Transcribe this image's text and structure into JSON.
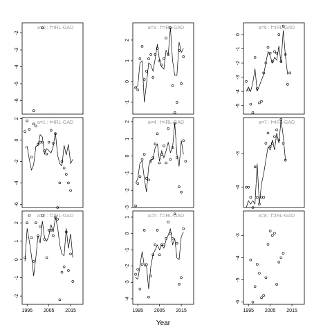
{
  "chart_data": [
    {
      "type": "line",
      "title": "a=0 : f=IRL-GAD",
      "x": [
        1994,
        1995,
        1996,
        1997,
        1998,
        1999,
        2000,
        2001,
        2002,
        2003,
        2004,
        2005,
        2006,
        2007,
        2008,
        2009,
        2010,
        2011,
        2012,
        2013,
        2014,
        2015,
        2016,
        2017,
        2018
      ],
      "series": [
        {
          "color": "#000000",
          "marker": "circle",
          "values": [
            null,
            null,
            null,
            null,
            -6.6,
            null,
            null,
            null,
            -1.7,
            null,
            null,
            null,
            null,
            null,
            null,
            null,
            null,
            null,
            null,
            null,
            null,
            null,
            null,
            null,
            null
          ]
        }
      ],
      "xlim": [
        1992.7,
        2020.7
      ],
      "ylim": [
        -6.8,
        -1.4
      ],
      "yticks": [
        -2,
        -3,
        -4,
        -5,
        -6
      ]
    },
    {
      "type": "line",
      "title": "a=1 : f=IRL-GAD",
      "x": [
        1994,
        1995,
        1996,
        1997,
        1998,
        1999,
        2000,
        2001,
        2002,
        2003,
        2004,
        2005,
        2006,
        2007,
        2008,
        2009,
        2010,
        2011,
        2012,
        2013,
        2014,
        2015,
        2016,
        2017,
        2018
      ],
      "series": [
        {
          "color": "#000000",
          "marker": "circle",
          "values": [
            0.8,
            1.8,
            1.0,
            -1.6,
            1.5,
            1.3,
            -0.4,
            -0.2,
            -0.2,
            -1.0,
            -1.3,
            -0.2,
            0.9,
            -0.3,
            0.6,
            -6.3,
            -4.0,
            -2.0,
            -2.6,
            -3.2,
            -4.0,
            -4.7,
            null,
            null,
            null
          ]
        },
        {
          "color": "#000000",
          "marker": "none",
          "values": [
            -0.7,
            -0.6,
            -1.8,
            -2.8,
            -2.3,
            -0.6,
            -0.5,
            0.5,
            0.3,
            -1.3,
            -0.8,
            -1.0,
            -1.2,
            -0.6,
            0.7,
            -1.4,
            -2.2,
            -2.4,
            -0.5,
            -1.4,
            -0.4,
            -2.2,
            -1.8,
            null,
            null
          ]
        }
      ],
      "xlim": [
        1992.7,
        2020.7
      ],
      "ylim": [
        -6.3,
        2.1
      ],
      "yticks": [
        2,
        0,
        -2,
        -4,
        -6
      ]
    },
    {
      "type": "line",
      "title": "a=2 : f=IRL-GAD",
      "x": [
        1994,
        1995,
        1996,
        1997,
        1998,
        1999,
        2000,
        2001,
        2002,
        2003,
        2004,
        2005,
        2006,
        2007,
        2008,
        2009,
        2010,
        2011,
        2012,
        2013,
        2014,
        2015,
        2016,
        2017,
        2018
      ],
      "series": [
        {
          "color": "#000000",
          "marker": "circle",
          "values": [
            0.1,
            2.0,
            2.4,
            1.2,
            -0.1,
            2.0,
            1.3,
            1.8,
            2.4,
            1.1,
            0.1,
            1.6,
            1.6,
            1.3,
            2.3,
            2.2,
            -2.2,
            -0.7,
            -0.4,
            1.5,
            -0.6,
            0.3,
            -1.2,
            null,
            null
          ]
        },
        {
          "color": "#000000",
          "marker": "none",
          "values": [
            -0.1,
            1.7,
            1.0,
            0.2,
            -0.9,
            0.1,
            1.3,
            0.9,
            2.1,
            1.2,
            1.0,
            1.3,
            1.9,
            1.5,
            2.3,
            1.8,
            0.8,
            0.3,
            0.2,
            1.7,
            0.6,
            1.4,
            0.1,
            null,
            null
          ]
        }
      ],
      "xlim": [
        1992.7,
        2020.7
      ],
      "ylim": [
        -2.45,
        2.65
      ],
      "yticks": [
        2,
        1,
        0,
        -1,
        -2
      ],
      "xticks": [
        1995,
        2005,
        2015
      ]
    },
    {
      "type": "line",
      "title": "a=3 : f=IRL-GAD",
      "x": [
        1994,
        1995,
        1996,
        1997,
        1998,
        1999,
        2000,
        2001,
        2002,
        2003,
        2004,
        2005,
        2006,
        2007,
        2008,
        2009,
        2010,
        2011,
        2012,
        2013,
        2014,
        2015,
        2016,
        2017,
        2018
      ],
      "series": [
        {
          "color": "#000000",
          "marker": "circle",
          "values": [
            -0.3,
            -0.4,
            1.1,
            1.7,
            0.1,
            0.5,
            1.1,
            1.3,
            0.2,
            1.3,
            1.6,
            1.0,
            0.8,
            1.1,
            2.1,
            1.3,
            2.6,
            -0.2,
            -1.5,
            -1.0,
            1.5,
            -0.1,
            1.2,
            null,
            null
          ]
        },
        {
          "color": "#000000",
          "marker": "none",
          "values": [
            -0.3,
            -0.2,
            0.9,
            1.0,
            -1.0,
            -0.1,
            0.9,
            0.8,
            0.5,
            1.1,
            1.8,
            1.0,
            0.7,
            0.6,
            1.5,
            1.3,
            2.6,
            1.0,
            0.3,
            0.3,
            1.9,
            1.4,
            1.6,
            null,
            null
          ]
        }
      ],
      "xlim": [
        1992.7,
        2020.7
      ],
      "ylim": [
        -1.57,
        2.83
      ],
      "yticks": [
        2,
        1,
        0,
        -1
      ]
    },
    {
      "type": "line",
      "title": "a=4 : f=IRL-GAD",
      "x": [
        1994,
        1995,
        1996,
        1997,
        1998,
        1999,
        2000,
        2001,
        2002,
        2003,
        2004,
        2005,
        2006,
        2007,
        2008,
        2009,
        2010,
        2011,
        2012,
        2013,
        2014,
        2015,
        2016,
        2017,
        2018
      ],
      "series": [
        {
          "color": "#000000",
          "marker": "circle",
          "values": [
            -2.9,
            -1.6,
            -1.2,
            -0.2,
            0.1,
            -1.3,
            -1.4,
            -0.3,
            -0.1,
            0.7,
            1.3,
            -0.4,
            0.1,
            0.6,
            -0.4,
            1.6,
            -0.2,
            0.5,
            1.9,
            -0.1,
            -1.8,
            -2.1,
            0.9,
            -0.3,
            null
          ]
        },
        {
          "color": "#000000",
          "marker": "none",
          "values": [
            -1.6,
            -1.3,
            -0.4,
            -0.3,
            -1.3,
            -2.1,
            -0.6,
            -0.2,
            -0.2,
            0.5,
            0.7,
            -0.3,
            0.3,
            -0.1,
            0.3,
            0.8,
            0.2,
            0.5,
            1.9,
            0.1,
            -0.6,
            0.9,
            0.1,
            null,
            null
          ]
        }
      ],
      "xlim": [
        1992.7,
        2020.7
      ],
      "ylim": [
        -3.0,
        2.24
      ],
      "yticks": [
        2,
        1,
        0,
        -1,
        -2,
        -3
      ]
    },
    {
      "type": "line",
      "title": "a=5 : f=IRL-GAD",
      "x": [
        1994,
        1995,
        1996,
        1997,
        1998,
        1999,
        2000,
        2001,
        2002,
        2003,
        2004,
        2005,
        2006,
        2007,
        2008,
        2009,
        2010,
        2011,
        2012,
        2013,
        2014,
        2015,
        2016,
        2017,
        2018
      ],
      "series": [
        {
          "color": "#000000",
          "marker": "circle",
          "values": [
            -2.5,
            -2.2,
            -3.4,
            -1.9,
            0.2,
            -1.9,
            -3.9,
            -2.6,
            -1.3,
            -0.7,
            0.2,
            -1.3,
            -0.7,
            -0.7,
            -0.3,
            0.7,
            0.0,
            -0.3,
            1.2,
            -0.6,
            -3.1,
            -2.7,
            0.3,
            null,
            null
          ]
        },
        {
          "color": "#000000",
          "marker": "none",
          "values": [
            -2.7,
            -2.8,
            -2.0,
            -1.1,
            -2.0,
            -2.0,
            -3.4,
            -2.0,
            -1.3,
            -1.0,
            -0.7,
            -1.0,
            -0.7,
            -0.9,
            -0.4,
            -0.1,
            0.3,
            -0.7,
            -0.3,
            -1.5,
            -1.6,
            -0.2,
            0.1,
            null,
            null
          ]
        }
      ],
      "xlim": [
        1992.7,
        2020.7
      ],
      "ylim": [
        -4.34,
        1.38
      ],
      "yticks": [
        1,
        0,
        -1,
        -2,
        -3,
        -4
      ],
      "xticks": [
        1995,
        2005,
        2015
      ],
      "xlabel": "Year"
    },
    {
      "type": "line",
      "title": "a=6 : f=IRL-GAD",
      "x": [
        1994,
        1995,
        1996,
        1997,
        1998,
        1999,
        2000,
        2001,
        2002,
        2003,
        2004,
        2005,
        2006,
        2007,
        2008,
        2009,
        2010,
        2011,
        2012,
        2013,
        2014,
        2015,
        2016,
        2017,
        2018
      ],
      "series": [
        {
          "color": "#000000",
          "marker": "circle",
          "values": [
            -3.3,
            -3.9,
            -4.9,
            -5.5,
            -1.6,
            -3.8,
            -4.8,
            -4.7,
            -2.7,
            -2.0,
            -0.9,
            -1.3,
            -1.9,
            -1.2,
            -1.3,
            0.0,
            -1.9,
            0.6,
            -1.4,
            -3.5,
            -2.7,
            null,
            null,
            null,
            null
          ]
        },
        {
          "color": "#000000",
          "marker": "none",
          "values": [
            -4.0,
            -3.7,
            -4.0,
            -3.4,
            -2.4,
            -4.0,
            -3.6,
            -3.2,
            -2.8,
            -2.0,
            -1.2,
            -1.5,
            -2.0,
            -1.6,
            -1.8,
            -0.8,
            -2.0,
            0.3,
            -1.5,
            -2.8,
            null,
            null,
            null,
            null,
            null
          ]
        }
      ],
      "xlim": [
        1992.7,
        2020.7
      ],
      "ylim": [
        -5.6,
        0.83
      ],
      "yticks": [
        0,
        -1,
        -2,
        -3,
        -4,
        -5
      ]
    },
    {
      "type": "line",
      "title": "a=7 : f=IRL-GAD",
      "x": [
        1994,
        1995,
        1996,
        1997,
        1998,
        1999,
        2000,
        2001,
        2002,
        2003,
        2004,
        2005,
        2006,
        2007,
        2008,
        2009,
        2010,
        2011,
        2012,
        2013,
        2014,
        2015,
        2016,
        2017,
        2018
      ],
      "series": [
        {
          "color": "#000000",
          "marker": "circle",
          "values": [
            -4.0,
            -4.0,
            -4.3,
            -4.6,
            -3.4,
            -4.3,
            -4.5,
            -4.3,
            -4.3,
            -2.7,
            -2.4,
            -2.8,
            -2.7,
            -2.5,
            -2.3,
            -2.6,
            -2.0,
            -2.7,
            -3.2,
            null,
            null,
            null,
            null,
            null,
            null
          ]
        },
        {
          "color": "#000000",
          "marker": "none",
          "values": [
            -4.6,
            -4.4,
            -4.5,
            -4.4,
            -4.5,
            -3.3,
            -4.5,
            -3.9,
            -3.6,
            -3.2,
            -2.8,
            -2.9,
            -2.6,
            -2.9,
            -2.4,
            -2.7,
            -2.0,
            -2.5,
            -3.2,
            null,
            null,
            null,
            null,
            null,
            null
          ]
        }
      ],
      "xlim": [
        1992.7,
        2020.7
      ],
      "ylim": [
        -4.6,
        -1.94
      ],
      "yticks": [
        -3,
        -4
      ]
    },
    {
      "type": "line",
      "title": "a=8 : f=IRL-GAD",
      "x": [
        1994,
        1995,
        1996,
        1997,
        1998,
        1999,
        2000,
        2001,
        2002,
        2003,
        2004,
        2005,
        2006,
        2007,
        2008,
        2009,
        2010,
        2011,
        2012,
        2013,
        2014,
        2015,
        2016,
        2017,
        2018
      ],
      "series": [
        {
          "color": "#000000",
          "marker": "circle",
          "values": [
            null,
            null,
            -4.1,
            -6.0,
            -5.3,
            -4.3,
            -4.7,
            -5.8,
            -5.7,
            -4.9,
            -3.4,
            -2.8,
            -3.0,
            -2.9,
            -5.2,
            -4.2,
            -4.0,
            -3.8,
            null,
            null,
            null,
            null,
            null,
            null,
            null
          ]
        }
      ],
      "xlim": [
        1992.7,
        2020.7
      ],
      "ylim": [
        -6.1,
        -1.9
      ],
      "yticks": [
        -3,
        -4,
        -5,
        -6
      ],
      "xticks": [
        1995,
        2005,
        2015
      ]
    }
  ]
}
